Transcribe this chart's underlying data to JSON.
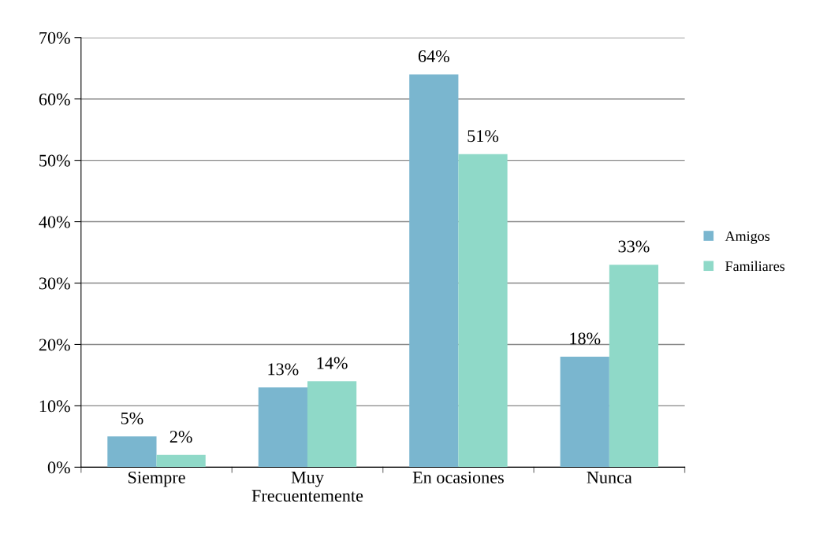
{
  "chart_data": {
    "type": "bar",
    "categories": [
      "Siempre",
      "Muy\nFrecuentemente",
      "En ocasiones",
      "Nunca"
    ],
    "series": [
      {
        "name": "Amigos",
        "color": "#7ab6cf",
        "values": [
          5,
          13,
          64,
          18
        ],
        "value_labels": [
          "5%",
          "13%",
          "64%",
          "18%"
        ]
      },
      {
        "name": "Familiares",
        "color": "#8fd9c8",
        "values": [
          2,
          14,
          51,
          33
        ],
        "value_labels": [
          "2%",
          "14%",
          "51%",
          "33%"
        ]
      }
    ],
    "ylim": [
      0,
      70
    ],
    "yticks": [
      {
        "value": 0,
        "label": "0%"
      },
      {
        "value": 10,
        "label": "10%"
      },
      {
        "value": 20,
        "label": "20%"
      },
      {
        "value": 30,
        "label": "30%"
      },
      {
        "value": 40,
        "label": "40%"
      },
      {
        "value": 50,
        "label": "50%"
      },
      {
        "value": 60,
        "label": "60%"
      },
      {
        "value": 70,
        "label": "70%"
      }
    ],
    "grid": "y",
    "legend": "right"
  }
}
